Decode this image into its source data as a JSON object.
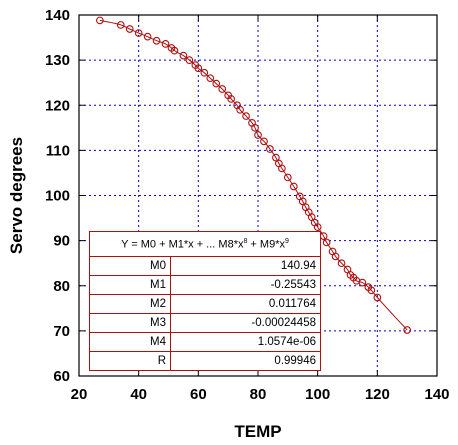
{
  "chart_data": {
    "type": "scatter",
    "xlabel": "TEMP",
    "ylabel": "Servo degrees",
    "xlim": [
      20,
      140
    ],
    "ylim": [
      60,
      140
    ],
    "x_ticks": [
      "20",
      "40",
      "60",
      "80",
      "100",
      "120",
      "140"
    ],
    "y_ticks": [
      "60",
      "70",
      "80",
      "90",
      "100",
      "110",
      "120",
      "130",
      "140"
    ],
    "grid": true,
    "colors": {
      "series": "#b01010",
      "grid": "#0000cc",
      "axes": "#000000"
    },
    "series": [
      {
        "marker": "circle",
        "x": [
          27,
          34,
          37,
          40,
          43,
          46,
          49,
          51,
          52,
          55,
          57,
          59,
          60,
          62,
          64,
          66,
          68,
          70,
          71,
          73,
          74,
          76,
          78,
          79,
          80,
          82,
          84,
          86,
          87,
          88,
          90,
          92,
          94,
          95,
          96,
          97,
          98,
          99,
          100,
          102,
          103,
          105,
          106,
          108,
          110,
          111,
          112,
          113,
          115,
          117,
          118,
          120,
          130
        ],
        "y": [
          138.8,
          137.8,
          136.9,
          136.0,
          135.2,
          134.3,
          133.6,
          132.7,
          132.1,
          131.0,
          130.0,
          128.9,
          128.2,
          127.2,
          126.0,
          124.8,
          123.6,
          122.2,
          121.4,
          120.0,
          119.0,
          117.6,
          116.1,
          115.0,
          113.4,
          112.0,
          110.3,
          108.4,
          107.1,
          106.0,
          104.0,
          102.0,
          99.8,
          98.7,
          97.4,
          96.3,
          95.2,
          94.0,
          93.0,
          91.0,
          89.6,
          87.6,
          86.5,
          85.0,
          83.6,
          82.4,
          81.8,
          81.1,
          80.7,
          79.7,
          79.0,
          77.4,
          70.2
        ]
      }
    ],
    "fit": {
      "equation_prefix": "Y = M0 + M1*x + ... M8*x",
      "equation_exp1": "8",
      "equation_mid": " + M9*x",
      "equation_exp2": "9",
      "coefficients": [
        {
          "name": "M0",
          "value": 140.94
        },
        {
          "name": "M1",
          "value": -0.25543
        },
        {
          "name": "M2",
          "value": 0.011764
        },
        {
          "name": "M3",
          "value": -0.00024458
        },
        {
          "name": "M4",
          "value": 1.0574e-06
        }
      ],
      "coefficient_labels": [
        "140.94",
        "-0.25543",
        "0.011764",
        "-0.00024458",
        "1.0574e-06"
      ],
      "r_name": "R",
      "r_value": "0.99946",
      "x_range": [
        27,
        130
      ]
    }
  }
}
